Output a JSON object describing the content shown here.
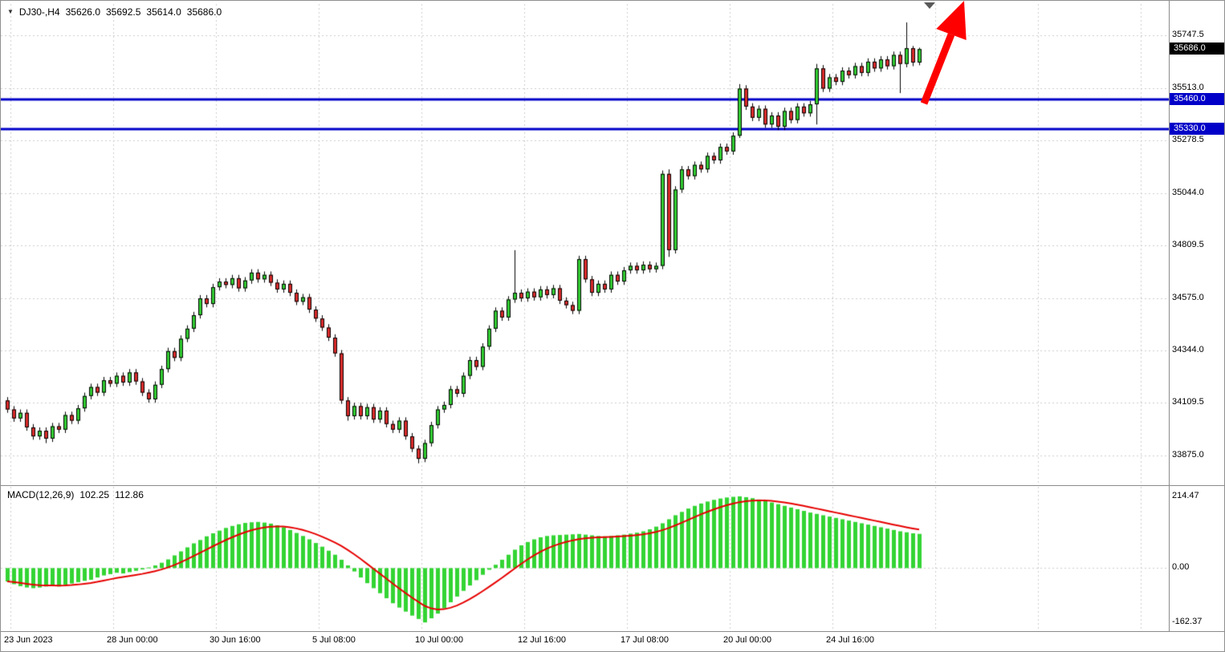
{
  "header": {
    "symbol_label": "DJ30-,H4",
    "open": "35626.0",
    "high": "35692.5",
    "low": "35614.0",
    "close": "35686.0"
  },
  "macd_header": {
    "label": "MACD(12,26,9)",
    "main_value": "102.25",
    "signal_value": "112.86"
  },
  "colors": {
    "bull": "#32CD32",
    "bear": "#DB2B2B",
    "wick": "#000000",
    "grid": "#CCCCCC",
    "hline": "#0000C8",
    "signal": "#E60000",
    "hist": "#33D433",
    "badge_current_bg": "#000000",
    "badge_hline_bg": "#0000C8",
    "arrow": "#FF0000"
  },
  "chart_data": {
    "type": "candlestick",
    "title": "DJ30-,H4",
    "symbol": "DJ30-",
    "timeframe": "H4",
    "price_axis_values": [
      35747.5,
      35513.0,
      35278.5,
      35044.0,
      34809.5,
      34575.0,
      34344.0,
      34109.5,
      33875.0
    ],
    "price_axis_labels": [
      "35747.5",
      "35513.0",
      "35278.5",
      "35044.0",
      "34809.5",
      "34575.0",
      "34344.0",
      "34109.5",
      "33875.0"
    ],
    "price_ylim": [
      33746,
      35887
    ],
    "current_price": 35686.0,
    "current_price_label": "35686.0",
    "hlines": [
      {
        "price": 35460.0,
        "label": "35460.0"
      },
      {
        "price": 35330.0,
        "label": "35330.0"
      }
    ],
    "time_labels": [
      "23 Jun 2023",
      "28 Jun 00:00",
      "30 Jun 16:00",
      "5 Jul 08:00",
      "10 Jul 00:00",
      "12 Jul 16:00",
      "17 Jul 08:00",
      "20 Jul 00:00",
      "24 Jul 16:00"
    ],
    "bars_per_gridline": 16,
    "gridlines_total": 12,
    "candles": [
      [
        34120,
        34135,
        34065,
        34080
      ],
      [
        34080,
        34095,
        34025,
        34040
      ],
      [
        34040,
        34080,
        34025,
        34065
      ],
      [
        34065,
        34080,
        33985,
        34000
      ],
      [
        34000,
        34015,
        33945,
        33960
      ],
      [
        33960,
        34000,
        33945,
        33985
      ],
      [
        33985,
        34000,
        33930,
        33950
      ],
      [
        33950,
        34020,
        33935,
        34005
      ],
      [
        34005,
        34020,
        33975,
        33990
      ],
      [
        33990,
        34070,
        33975,
        34055
      ],
      [
        34055,
        34070,
        34015,
        34030
      ],
      [
        34030,
        34100,
        34015,
        34085
      ],
      [
        34085,
        34155,
        34070,
        34140
      ],
      [
        34140,
        34195,
        34125,
        34180
      ],
      [
        34180,
        34195,
        34140,
        34155
      ],
      [
        34155,
        34225,
        34140,
        34210
      ],
      [
        34210,
        34225,
        34180,
        34195
      ],
      [
        34195,
        34245,
        34180,
        34230
      ],
      [
        34230,
        34245,
        34185,
        34200
      ],
      [
        34200,
        34260,
        34185,
        34245
      ],
      [
        34245,
        34260,
        34190,
        34205
      ],
      [
        34205,
        34220,
        34140,
        34155
      ],
      [
        34155,
        34170,
        34110,
        34125
      ],
      [
        34125,
        34205,
        34110,
        34190
      ],
      [
        34190,
        34275,
        34175,
        34260
      ],
      [
        34260,
        34355,
        34245,
        34340
      ],
      [
        34340,
        34355,
        34295,
        34310
      ],
      [
        34310,
        34410,
        34295,
        34395
      ],
      [
        34395,
        34455,
        34380,
        34440
      ],
      [
        34440,
        34515,
        34425,
        34500
      ],
      [
        34500,
        34590,
        34485,
        34575
      ],
      [
        34575,
        34590,
        34535,
        34550
      ],
      [
        34550,
        34640,
        34535,
        34625
      ],
      [
        34625,
        34665,
        34610,
        34650
      ],
      [
        34650,
        34665,
        34620,
        34635
      ],
      [
        34635,
        34680,
        34620,
        34665
      ],
      [
        34665,
        34680,
        34605,
        34620
      ],
      [
        34620,
        34670,
        34605,
        34655
      ],
      [
        34655,
        34705,
        34640,
        34690
      ],
      [
        34690,
        34705,
        34645,
        34660
      ],
      [
        34660,
        34695,
        34645,
        34680
      ],
      [
        34680,
        34695,
        34630,
        34645
      ],
      [
        34645,
        34660,
        34600,
        34615
      ],
      [
        34615,
        34655,
        34600,
        34640
      ],
      [
        34640,
        34655,
        34585,
        34600
      ],
      [
        34600,
        34615,
        34545,
        34560
      ],
      [
        34560,
        34595,
        34545,
        34580
      ],
      [
        34580,
        34595,
        34510,
        34525
      ],
      [
        34525,
        34540,
        34470,
        34485
      ],
      [
        34485,
        34500,
        34430,
        34445
      ],
      [
        34445,
        34460,
        34385,
        34400
      ],
      [
        34400,
        34415,
        34315,
        34330
      ],
      [
        34330,
        34345,
        34105,
        34120
      ],
      [
        34120,
        34135,
        34030,
        34050
      ],
      [
        34050,
        34110,
        34035,
        34095
      ],
      [
        34095,
        34110,
        34035,
        34050
      ],
      [
        34050,
        34105,
        34035,
        34090
      ],
      [
        34090,
        34105,
        34020,
        34035
      ],
      [
        34035,
        34090,
        34020,
        34075
      ],
      [
        34075,
        34090,
        34000,
        34015
      ],
      [
        34015,
        34030,
        33975,
        33990
      ],
      [
        33990,
        34045,
        33975,
        34030
      ],
      [
        34030,
        34045,
        33945,
        33960
      ],
      [
        33960,
        33975,
        33890,
        33905
      ],
      [
        33905,
        33920,
        33840,
        33860
      ],
      [
        33860,
        33945,
        33845,
        33930
      ],
      [
        33930,
        34025,
        33915,
        34010
      ],
      [
        34010,
        34095,
        33995,
        34080
      ],
      [
        34080,
        34115,
        34065,
        34100
      ],
      [
        34100,
        34185,
        34085,
        34170
      ],
      [
        34170,
        34185,
        34135,
        34150
      ],
      [
        34150,
        34245,
        34135,
        34230
      ],
      [
        34230,
        34315,
        34215,
        34300
      ],
      [
        34300,
        34315,
        34255,
        34270
      ],
      [
        34270,
        34375,
        34255,
        34360
      ],
      [
        34360,
        34455,
        34345,
        34440
      ],
      [
        34440,
        34535,
        34425,
        34520
      ],
      [
        34520,
        34535,
        34475,
        34490
      ],
      [
        34490,
        34585,
        34475,
        34570
      ],
      [
        34570,
        34790,
        34555,
        34600
      ],
      [
        34600,
        34615,
        34560,
        34575
      ],
      [
        34575,
        34620,
        34560,
        34605
      ],
      [
        34605,
        34620,
        34565,
        34580
      ],
      [
        34580,
        34630,
        34565,
        34615
      ],
      [
        34615,
        34630,
        34575,
        34590
      ],
      [
        34590,
        34635,
        34575,
        34620
      ],
      [
        34620,
        34635,
        34550,
        34565
      ],
      [
        34565,
        34580,
        34530,
        34545
      ],
      [
        34545,
        34560,
        34505,
        34520
      ],
      [
        34520,
        34765,
        34505,
        34750
      ],
      [
        34750,
        34765,
        34645,
        34660
      ],
      [
        34660,
        34675,
        34585,
        34600
      ],
      [
        34600,
        34655,
        34585,
        34640
      ],
      [
        34640,
        34655,
        34600,
        34615
      ],
      [
        34615,
        34695,
        34600,
        34680
      ],
      [
        34680,
        34695,
        34635,
        34650
      ],
      [
        34650,
        34715,
        34635,
        34700
      ],
      [
        34700,
        34735,
        34685,
        34720
      ],
      [
        34720,
        34735,
        34685,
        34700
      ],
      [
        34700,
        34740,
        34685,
        34725
      ],
      [
        34725,
        34740,
        34690,
        34705
      ],
      [
        34705,
        34735,
        34690,
        34720
      ],
      [
        34720,
        35145,
        34705,
        35130
      ],
      [
        35130,
        35150,
        34760,
        34790
      ],
      [
        34790,
        35075,
        34775,
        35060
      ],
      [
        35060,
        35165,
        35045,
        35150
      ],
      [
        35150,
        35165,
        35105,
        35120
      ],
      [
        35120,
        35185,
        35105,
        35170
      ],
      [
        35170,
        35185,
        35135,
        35150
      ],
      [
        35150,
        35225,
        35135,
        35210
      ],
      [
        35210,
        35225,
        35175,
        35190
      ],
      [
        35190,
        35265,
        35175,
        35250
      ],
      [
        35250,
        35265,
        35215,
        35230
      ],
      [
        35230,
        35315,
        35215,
        35300
      ],
      [
        35300,
        35530,
        35290,
        35510
      ],
      [
        35510,
        35525,
        35415,
        35430
      ],
      [
        35430,
        35445,
        35365,
        35380
      ],
      [
        35380,
        35435,
        35365,
        35420
      ],
      [
        35420,
        35435,
        35335,
        35350
      ],
      [
        35350,
        35405,
        35335,
        35390
      ],
      [
        35390,
        35405,
        35325,
        35340
      ],
      [
        35340,
        35425,
        35325,
        35410
      ],
      [
        35410,
        35425,
        35355,
        35370
      ],
      [
        35370,
        35445,
        35355,
        35430
      ],
      [
        35430,
        35445,
        35385,
        35400
      ],
      [
        35400,
        35455,
        35385,
        35440
      ],
      [
        35440,
        35620,
        35350,
        35600
      ],
      [
        35600,
        35615,
        35495,
        35510
      ],
      [
        35510,
        35575,
        35495,
        35560
      ],
      [
        35560,
        35575,
        35525,
        35540
      ],
      [
        35540,
        35605,
        35525,
        35590
      ],
      [
        35590,
        35605,
        35555,
        35570
      ],
      [
        35570,
        35625,
        35555,
        35610
      ],
      [
        35610,
        35625,
        35565,
        35580
      ],
      [
        35580,
        35645,
        35565,
        35630
      ],
      [
        35630,
        35645,
        35585,
        35600
      ],
      [
        35600,
        35655,
        35585,
        35640
      ],
      [
        35640,
        35655,
        35595,
        35610
      ],
      [
        35610,
        35675,
        35595,
        35660
      ],
      [
        35660,
        35675,
        35490,
        35620
      ],
      [
        35620,
        35805,
        35605,
        35690
      ],
      [
        35690,
        35700,
        35610,
        35626
      ],
      [
        35626,
        35692.5,
        35614,
        35686
      ]
    ],
    "macd": {
      "label": "MACD(12,26,9)",
      "main_value": 102.25,
      "signal_value": 112.86,
      "signal_period": 9,
      "axis_values": [
        214.47,
        0,
        -162.37
      ],
      "axis_labels": [
        "214.47",
        "0.00",
        "-162.37"
      ],
      "ylim": [
        -186,
        243
      ],
      "hist": [
        -40,
        -48,
        -54,
        -58,
        -60,
        -58,
        -55,
        -52,
        -55,
        -50,
        -46,
        -42,
        -38,
        -35,
        -28,
        -22,
        -18,
        -14,
        -16,
        -12,
        -8,
        -4,
        2,
        8,
        16,
        26,
        38,
        50,
        62,
        74,
        84,
        95,
        104,
        112,
        120,
        126,
        131,
        135,
        137,
        138,
        136,
        133,
        128,
        122,
        114,
        105,
        96,
        86,
        75,
        64,
        52,
        40,
        25,
        8,
        -10,
        -28,
        -45,
        -60,
        -75,
        -90,
        -105,
        -118,
        -130,
        -142,
        -152,
        -162.37,
        -150,
        -136,
        -120,
        -102,
        -85,
        -68,
        -52,
        -36,
        -20,
        -5,
        10,
        25,
        40,
        55,
        68,
        78,
        86,
        92,
        96,
        98,
        99,
        100,
        101,
        102,
        100,
        98,
        96,
        95,
        96,
        98,
        100,
        103,
        106,
        110,
        116,
        124,
        134,
        146,
        158,
        168,
        178,
        186,
        193,
        199,
        204,
        208,
        211,
        213,
        214.47,
        212,
        209,
        205,
        200,
        196,
        191,
        186,
        181,
        176,
        171,
        166,
        162,
        158,
        154,
        150,
        146,
        142,
        138,
        134,
        130,
        126,
        122,
        118,
        114,
        110,
        107,
        104,
        102.25
      ]
    },
    "annotations": [
      {
        "type": "arrow",
        "direction": "up",
        "color": "#FF0000"
      }
    ]
  }
}
